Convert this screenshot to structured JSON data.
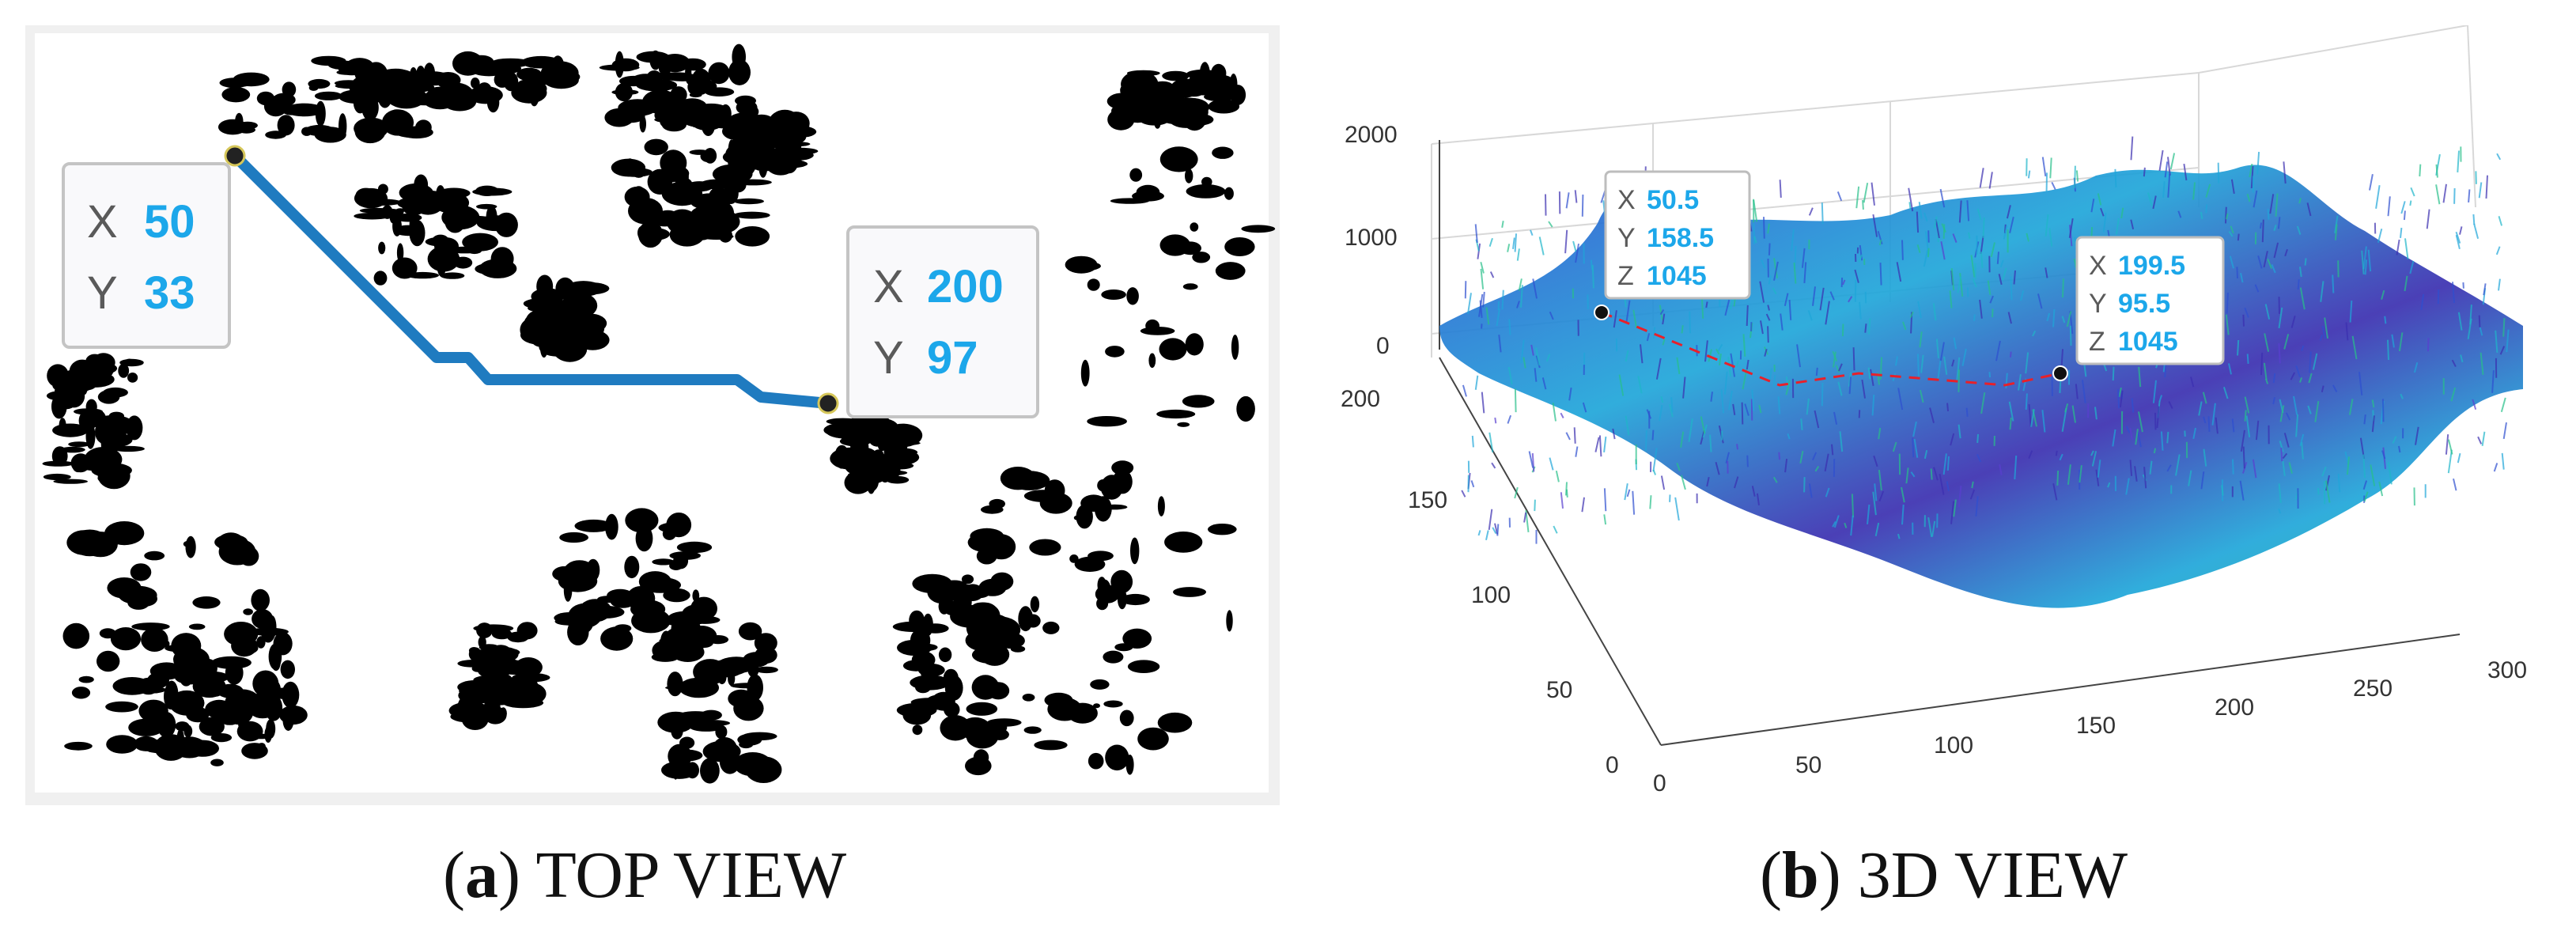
{
  "panel_a": {
    "caption_letter": "a",
    "caption_text": "TOP VIEW",
    "datatip_start": {
      "x_key": "X",
      "x_val": "50",
      "y_key": "Y",
      "y_val": "33"
    },
    "datatip_end": {
      "x_key": "X",
      "x_val": "200",
      "y_key": "Y",
      "y_val": "97"
    }
  },
  "panel_b": {
    "caption_letter": "b",
    "caption_text": "3D VIEW",
    "datatip_start": {
      "x_key": "X",
      "x_val": "50.5",
      "y_key": "Y",
      "y_val": "158.5",
      "z_key": "Z",
      "z_val": "1045"
    },
    "datatip_end": {
      "x_key": "X",
      "x_val": "199.5",
      "y_key": "Y",
      "y_val": "95.5",
      "z_key": "Z",
      "z_val": "1045"
    },
    "z_ticks": [
      "0",
      "1000",
      "2000"
    ],
    "y_ticks": [
      "0",
      "50",
      "100",
      "150",
      "200"
    ],
    "x_ticks": [
      "0",
      "50",
      "100",
      "150",
      "200",
      "250",
      "300"
    ]
  },
  "colors": {
    "path_a": "#1f7bc0",
    "path_b": "#e8202a",
    "value_text": "#1ca7ea",
    "surface_low": "#3b2fb0",
    "surface_mid": "#1fa6d9",
    "surface_high": "#d9d42a"
  }
}
